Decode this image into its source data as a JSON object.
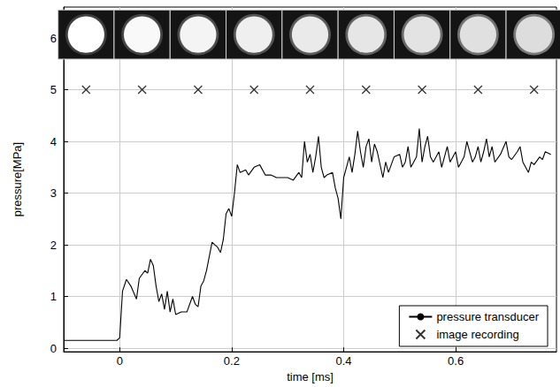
{
  "chart_data": {
    "type": "line",
    "x_label": "time [ms]",
    "y_label": "pressure[MPa]",
    "xlim": [
      -0.1,
      0.78
    ],
    "xticks": [
      0,
      0.2,
      0.4,
      0.6
    ],
    "ylim": [
      -0.07,
      6.6
    ],
    "yticks": [
      0,
      1,
      2,
      3,
      4,
      5,
      6
    ],
    "grid": true,
    "legend": "lower right",
    "series": [
      {
        "name": "pressure transducer",
        "type": "line",
        "color": "#000000",
        "line_style": "solid",
        "x": [
          -0.1,
          -0.05,
          -0.005,
          0.0,
          0.005,
          0.012,
          0.02,
          0.03,
          0.035,
          0.045,
          0.05,
          0.055,
          0.06,
          0.065,
          0.07,
          0.075,
          0.08,
          0.085,
          0.09,
          0.095,
          0.1,
          0.11,
          0.12,
          0.13,
          0.135,
          0.14,
          0.145,
          0.15,
          0.155,
          0.165,
          0.17,
          0.175,
          0.18,
          0.185,
          0.19,
          0.195,
          0.2,
          0.205,
          0.21,
          0.215,
          0.225,
          0.23,
          0.24,
          0.25,
          0.26,
          0.27,
          0.28,
          0.29,
          0.3,
          0.31,
          0.32,
          0.325,
          0.33,
          0.335,
          0.34,
          0.345,
          0.35,
          0.355,
          0.36,
          0.365,
          0.37,
          0.38,
          0.385,
          0.39,
          0.395,
          0.4,
          0.405,
          0.41,
          0.415,
          0.42,
          0.425,
          0.43,
          0.435,
          0.44,
          0.445,
          0.45,
          0.455,
          0.46,
          0.47,
          0.475,
          0.48,
          0.49,
          0.5,
          0.505,
          0.51,
          0.515,
          0.52,
          0.525,
          0.53,
          0.535,
          0.54,
          0.545,
          0.55,
          0.555,
          0.56,
          0.57,
          0.575,
          0.58,
          0.585,
          0.59,
          0.6,
          0.605,
          0.61,
          0.615,
          0.62,
          0.625,
          0.63,
          0.635,
          0.64,
          0.645,
          0.65,
          0.655,
          0.66,
          0.665,
          0.67,
          0.68,
          0.69,
          0.695,
          0.7,
          0.71,
          0.715,
          0.72,
          0.73,
          0.735,
          0.74,
          0.75,
          0.755,
          0.76,
          0.77
        ],
        "values": [
          0.15,
          0.15,
          0.15,
          0.2,
          1.1,
          1.33,
          1.2,
          0.95,
          1.35,
          1.5,
          1.45,
          1.72,
          1.6,
          1.2,
          0.9,
          1.05,
          0.75,
          1.1,
          0.7,
          0.95,
          0.65,
          0.7,
          0.7,
          1.0,
          0.85,
          0.8,
          1.2,
          1.3,
          1.5,
          2.05,
          2.0,
          1.95,
          1.85,
          2.1,
          2.6,
          2.7,
          2.55,
          3.0,
          3.55,
          3.4,
          3.45,
          3.35,
          3.5,
          3.55,
          3.35,
          3.35,
          3.3,
          3.3,
          3.3,
          3.25,
          3.4,
          3.3,
          4.0,
          3.6,
          3.75,
          3.4,
          3.7,
          4.1,
          3.5,
          3.3,
          3.35,
          3.4,
          3.1,
          2.9,
          2.5,
          3.3,
          3.5,
          3.7,
          3.4,
          3.75,
          4.2,
          3.8,
          3.5,
          3.9,
          4.05,
          3.6,
          3.95,
          3.8,
          3.3,
          3.6,
          3.4,
          3.7,
          3.75,
          3.5,
          3.6,
          3.9,
          3.5,
          3.6,
          3.7,
          4.25,
          3.6,
          3.9,
          4.1,
          3.7,
          3.6,
          3.8,
          3.5,
          3.7,
          3.9,
          3.6,
          3.8,
          3.5,
          3.6,
          3.7,
          4.0,
          3.8,
          3.6,
          3.7,
          3.9,
          3.6,
          3.8,
          4.05,
          3.7,
          3.9,
          3.6,
          3.75,
          4.0,
          3.7,
          3.65,
          3.8,
          3.9,
          3.6,
          3.4,
          3.6,
          3.55,
          3.7,
          3.65,
          3.8,
          3.75
        ]
      },
      {
        "name": "image recording",
        "type": "scatter",
        "color": "#000000",
        "marker": "x",
        "x": [
          -0.06,
          0.04,
          0.14,
          0.24,
          0.34,
          0.44,
          0.54,
          0.64,
          0.74
        ],
        "values": [
          5,
          5,
          5,
          5,
          5,
          5,
          5,
          5,
          5
        ]
      }
    ]
  }
}
